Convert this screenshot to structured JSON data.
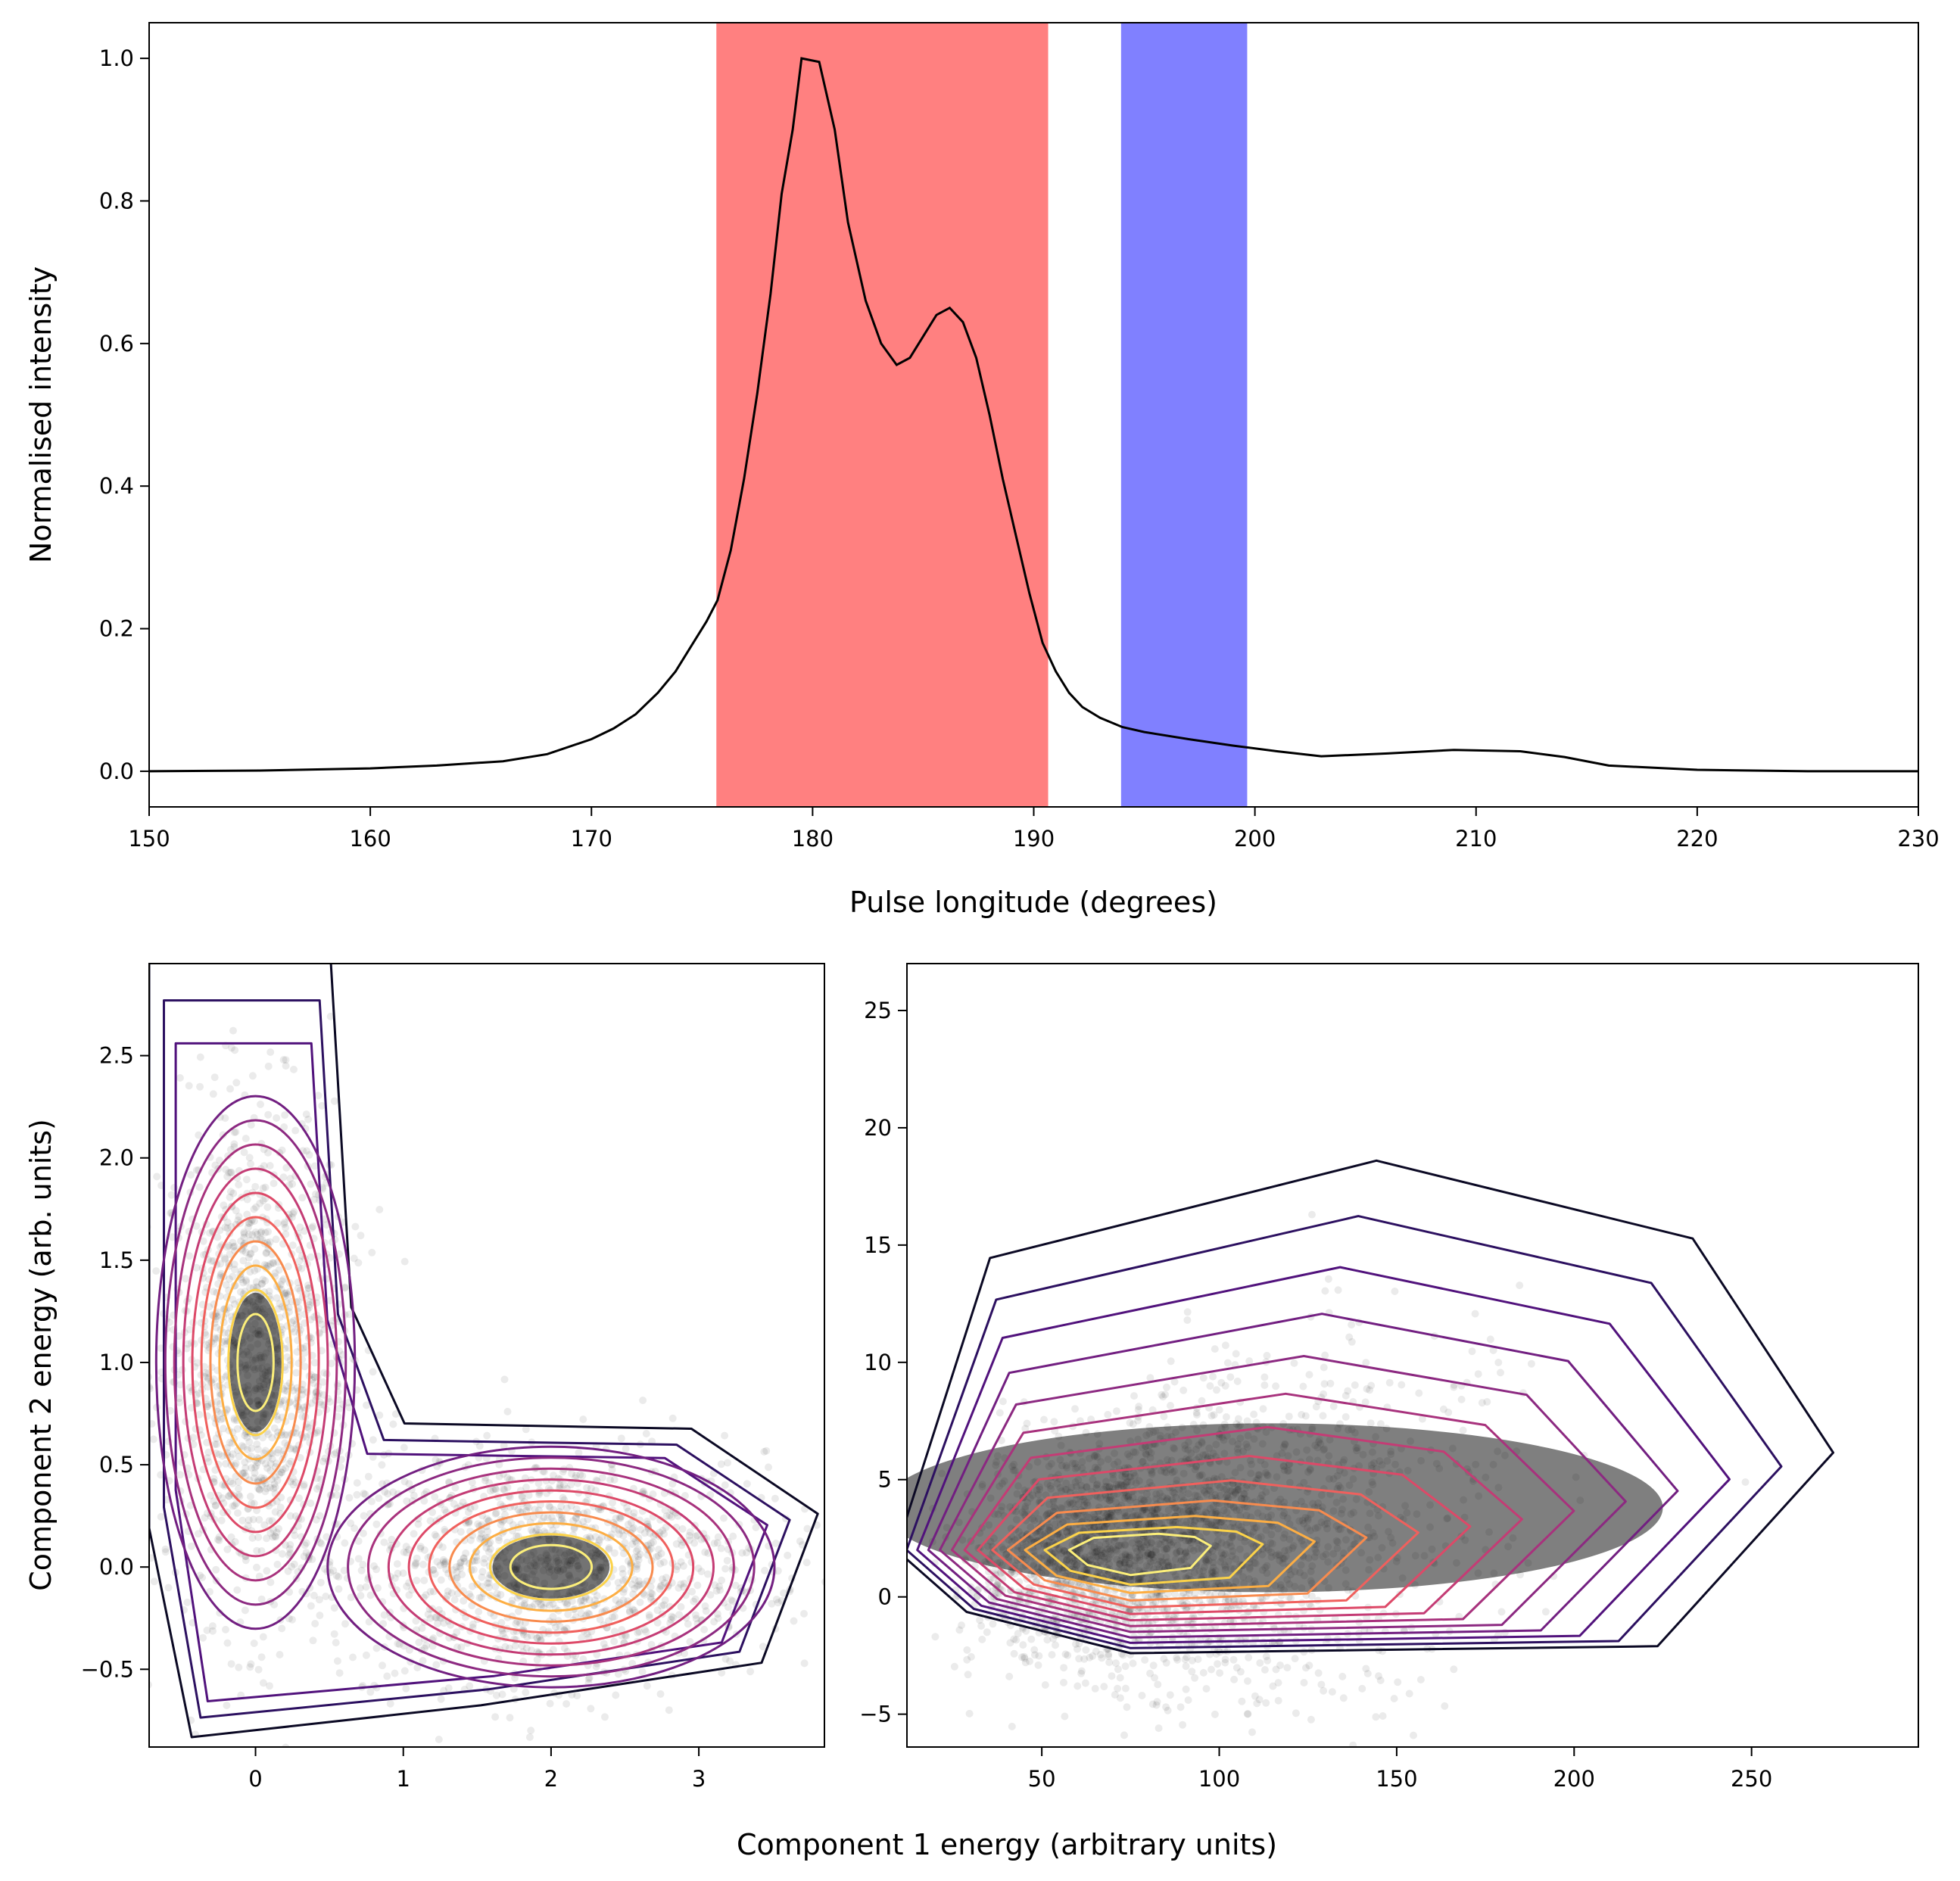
{
  "chart_data": [
    {
      "id": "profile",
      "type": "line",
      "title": "",
      "xlabel": "Pulse longitude (degrees)",
      "ylabel": "Normalised intensity",
      "xlim": [
        150,
        230
      ],
      "ylim": [
        -0.05,
        1.05
      ],
      "xticks": [
        150,
        160,
        170,
        180,
        190,
        200,
        210,
        220,
        230
      ],
      "yticks": [
        0.0,
        0.2,
        0.4,
        0.6,
        0.8,
        1.0
      ],
      "grid": false,
      "regions": [
        {
          "x0": 175.7,
          "x1": 190.6,
          "color": "#ff8080"
        },
        {
          "x0": 194.0,
          "x1": 199.6,
          "color": "#8080ff"
        }
      ],
      "line_color": "#000000",
      "series": [
        {
          "x": [
            150,
            155,
            160,
            163,
            166,
            168,
            170,
            171,
            172,
            173,
            173.8,
            174.6,
            175.2,
            175.7,
            176.3,
            176.9,
            177.5,
            178.1,
            178.6,
            179.1,
            179.5,
            180.3,
            181.0,
            181.6,
            182.4,
            183.1,
            183.8,
            184.4,
            185.0,
            185.6,
            186.2,
            186.8,
            187.4,
            188.0,
            188.6,
            189.2,
            189.8,
            190.4,
            191.0,
            191.6,
            192.2,
            193.0,
            194.0,
            195.0,
            197.0,
            199.0,
            201.0,
            203.0,
            206.0,
            209.0,
            212.0,
            214.0,
            216.0,
            220.0,
            225.0,
            230.0
          ],
          "y": [
            0.0,
            0.001,
            0.004,
            0.008,
            0.014,
            0.024,
            0.045,
            0.06,
            0.08,
            0.11,
            0.14,
            0.18,
            0.21,
            0.24,
            0.31,
            0.41,
            0.53,
            0.67,
            0.81,
            0.9,
            1.0,
            0.995,
            0.9,
            0.77,
            0.66,
            0.6,
            0.57,
            0.58,
            0.61,
            0.64,
            0.65,
            0.63,
            0.58,
            0.5,
            0.41,
            0.33,
            0.25,
            0.18,
            0.14,
            0.11,
            0.09,
            0.075,
            0.062,
            0.055,
            0.045,
            0.036,
            0.028,
            0.021,
            0.025,
            0.03,
            0.028,
            0.02,
            0.008,
            0.002,
            0.0,
            0.0
          ]
        }
      ]
    },
    {
      "id": "energy-left",
      "type": "scatter",
      "title": "",
      "xlabel": "",
      "ylabel": "Component 2 energy (arb. units)",
      "xlim": [
        -0.72,
        3.85
      ],
      "ylim": [
        -0.88,
        2.95
      ],
      "xticks": [
        0,
        1,
        2,
        3
      ],
      "yticks": [
        -0.5,
        0.0,
        0.5,
        1.0,
        1.5,
        2.0,
        2.5
      ],
      "point_color": "#000000",
      "contours": "density, magma colormap",
      "clusters": [
        {
          "cx": 0.0,
          "cy": 1.0,
          "sx": 0.32,
          "sy": 0.62
        },
        {
          "cx": 2.0,
          "cy": 0.0,
          "sx": 0.72,
          "sy": 0.28
        }
      ],
      "contour_colors": [
        "#0b0924",
        "#2c1060",
        "#51127c",
        "#721f81",
        "#8c2981",
        "#a8327d",
        "#c43c75",
        "#dd4968",
        "#f0605d",
        "#f88b4e",
        "#fdae43",
        "#fcd349",
        "#fcef7a"
      ]
    },
    {
      "id": "energy-right",
      "type": "scatter",
      "title": "",
      "xlabel": "",
      "ylabel": "",
      "xlim": [
        12,
        297
      ],
      "ylim": [
        -6.4,
        27.0
      ],
      "xticks": [
        50,
        100,
        150,
        200,
        250
      ],
      "yticks": [
        -5,
        0,
        5,
        10,
        15,
        20,
        25
      ],
      "point_color": "#000000",
      "contours": "density, magma colormap",
      "clusters": [
        {
          "cx": 75,
          "cy": 2.0,
          "sx": 50,
          "sy": 2.3
        }
      ],
      "contour_colors": [
        "#0b0924",
        "#2c1060",
        "#51127c",
        "#721f81",
        "#8c2981",
        "#a8327d",
        "#c43c75",
        "#dd4968",
        "#f0605d",
        "#f88b4e",
        "#fdae43",
        "#fcd349",
        "#fcef7a"
      ]
    }
  ],
  "shared_xlabel": "Component 1 energy (arbitrary units)"
}
